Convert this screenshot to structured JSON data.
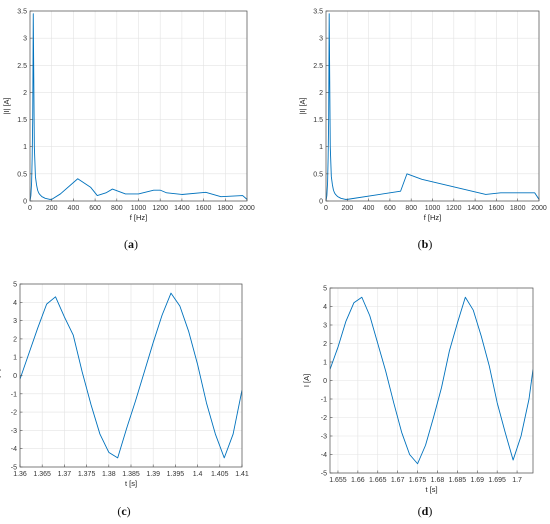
{
  "chart_data": [
    {
      "id": "a",
      "type": "line",
      "caption": {
        "open": "(",
        "letter": "a",
        "close": ")"
      },
      "xlabel": "f [Hz]",
      "ylabel": "|I| [A]",
      "xlim": [
        0,
        2000
      ],
      "ylim": [
        0,
        3.5
      ],
      "xticks": [
        0,
        200,
        400,
        600,
        800,
        1000,
        1200,
        1400,
        1600,
        1800,
        2000
      ],
      "yticks": [
        0,
        0.5,
        1,
        1.5,
        2,
        2.5,
        3,
        3.5
      ],
      "grid": true,
      "series": [
        {
          "color": "#0072BD",
          "x": [
            0,
            8,
            15,
            20,
            25,
            30,
            40,
            50,
            60,
            70,
            80,
            90,
            100,
            110,
            120,
            140,
            160,
            180,
            200,
            280,
            440,
            560,
            620,
            700,
            760,
            880,
            1000,
            1140,
            1200,
            1260,
            1400,
            1620,
            1760,
            1960,
            2000
          ],
          "y": [
            0,
            0.1,
            0.35,
            0.8,
            1.5,
            3.45,
            1.0,
            0.45,
            0.3,
            0.2,
            0.15,
            0.12,
            0.1,
            0.08,
            0.07,
            0.05,
            0.04,
            0.03,
            0.03,
            0.13,
            0.41,
            0.25,
            0.1,
            0.15,
            0.22,
            0.13,
            0.13,
            0.2,
            0.2,
            0.15,
            0.12,
            0.16,
            0.08,
            0.1,
            0.03
          ]
        }
      ]
    },
    {
      "id": "b",
      "type": "line",
      "caption": {
        "open": "(",
        "letter": "b",
        "close": ")"
      },
      "xlabel": "f [Hz]",
      "ylabel": "|I| [A]",
      "xlim": [
        0,
        2000
      ],
      "ylim": [
        0,
        3.5
      ],
      "xticks": [
        0,
        200,
        400,
        600,
        800,
        1000,
        1200,
        1400,
        1600,
        1800,
        2000
      ],
      "yticks": [
        0,
        0.5,
        1,
        1.5,
        2,
        2.5,
        3,
        3.5
      ],
      "grid": true,
      "series": [
        {
          "color": "#0072BD",
          "x": [
            0,
            8,
            15,
            20,
            25,
            30,
            40,
            50,
            60,
            70,
            80,
            90,
            100,
            110,
            120,
            140,
            160,
            180,
            200,
            700,
            760,
            900,
            1500,
            1640,
            1960,
            2000
          ],
          "y": [
            0,
            0.1,
            0.35,
            0.8,
            1.5,
            3.45,
            1.0,
            0.45,
            0.3,
            0.2,
            0.15,
            0.12,
            0.1,
            0.08,
            0.07,
            0.05,
            0.04,
            0.03,
            0.03,
            0.18,
            0.5,
            0.4,
            0.12,
            0.15,
            0.15,
            0.03
          ]
        }
      ]
    },
    {
      "id": "c",
      "type": "line",
      "caption": {
        "open": "(",
        "letter": "c",
        "close": ")"
      },
      "xlabel": "t [s]",
      "ylabel": "I [A]",
      "xlim": [
        1.36,
        1.41
      ],
      "ylim": [
        -5,
        5
      ],
      "xticks": [
        1.36,
        1.365,
        1.37,
        1.375,
        1.38,
        1.385,
        1.39,
        1.395,
        1.4,
        1.405,
        1.41
      ],
      "yticks": [
        -5,
        -4,
        -3,
        -2,
        -1,
        0,
        1,
        2,
        3,
        4,
        5
      ],
      "grid": true,
      "series": [
        {
          "color": "#0072BD",
          "x": [
            1.36,
            1.362,
            1.364,
            1.366,
            1.368,
            1.37,
            1.372,
            1.374,
            1.376,
            1.378,
            1.38,
            1.382,
            1.384,
            1.386,
            1.388,
            1.39,
            1.392,
            1.394,
            1.396,
            1.398,
            1.4,
            1.402,
            1.404,
            1.406,
            1.408,
            1.41
          ],
          "y": [
            -0.2,
            1.2,
            2.6,
            3.9,
            4.3,
            3.2,
            2.2,
            0.2,
            -1.6,
            -3.2,
            -4.2,
            -4.5,
            -2.9,
            -1.4,
            0.2,
            1.8,
            3.3,
            4.5,
            3.8,
            2.4,
            0.6,
            -1.5,
            -3.2,
            -4.5,
            -3.2,
            -0.8
          ]
        }
      ]
    },
    {
      "id": "d",
      "type": "line",
      "caption": {
        "open": "(",
        "letter": "d",
        "close": ")"
      },
      "xlabel": "t [s]",
      "ylabel": "I [A]",
      "xlim": [
        1.653,
        1.704
      ],
      "ylim": [
        -5,
        5
      ],
      "xticks": [
        1.655,
        1.66,
        1.665,
        1.67,
        1.675,
        1.68,
        1.685,
        1.69,
        1.695,
        1.7
      ],
      "yticks": [
        -5,
        -4,
        -3,
        -2,
        -1,
        0,
        1,
        2,
        3,
        4,
        5
      ],
      "grid": true,
      "series": [
        {
          "color": "#0072BD",
          "x": [
            1.653,
            1.655,
            1.657,
            1.659,
            1.661,
            1.663,
            1.665,
            1.667,
            1.669,
            1.671,
            1.673,
            1.675,
            1.677,
            1.679,
            1.681,
            1.683,
            1.685,
            1.687,
            1.689,
            1.691,
            1.693,
            1.695,
            1.697,
            1.699,
            1.701,
            1.703,
            1.704
          ],
          "y": [
            0.6,
            1.8,
            3.2,
            4.2,
            4.5,
            3.5,
            2.0,
            0.5,
            -1.2,
            -2.8,
            -4.0,
            -4.5,
            -3.5,
            -2.0,
            -0.4,
            1.6,
            3.1,
            4.5,
            3.8,
            2.4,
            0.8,
            -1.2,
            -2.8,
            -4.3,
            -3.0,
            -1.0,
            0.6
          ]
        }
      ]
    }
  ]
}
